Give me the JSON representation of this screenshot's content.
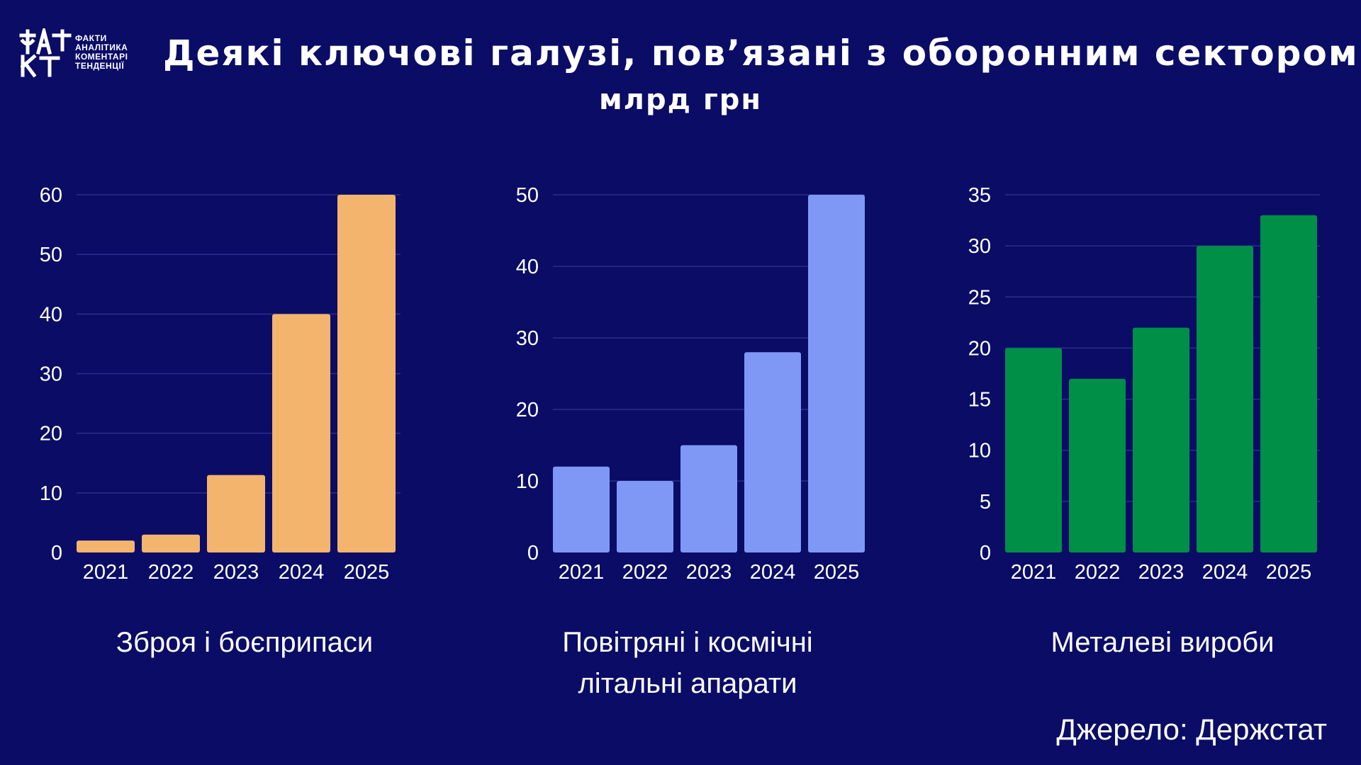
{
  "logo": {
    "lines": [
      "ФАКТИ",
      "АНАЛІТИКА",
      "КОМЕНТАРІ",
      "ТЕНДЕНЦІЇ"
    ],
    "accent": "#ffffff"
  },
  "header": {
    "title": "Деякі ключові галузі, пов’язані з оборонним сектором",
    "subtitle": "млрд грн"
  },
  "source": "Джерело: Держстат",
  "chart_data": [
    {
      "type": "bar",
      "categories": [
        "2021",
        "2022",
        "2023",
        "2024",
        "2025"
      ],
      "values": [
        2,
        3,
        13,
        40,
        60
      ],
      "ylim": [
        0,
        60
      ],
      "yticks": [
        0,
        10,
        20,
        30,
        40,
        50,
        60
      ],
      "caption": [
        "Зброя і боєприпаси"
      ],
      "color": "#f3b46e",
      "grid": true
    },
    {
      "type": "bar",
      "categories": [
        "2021",
        "2022",
        "2023",
        "2024",
        "2025"
      ],
      "values": [
        12,
        10,
        15,
        28,
        50
      ],
      "ylim": [
        0,
        50
      ],
      "yticks": [
        0,
        10,
        20,
        30,
        40,
        50
      ],
      "caption": [
        "Повітряні і космічні",
        "літальні апарати"
      ],
      "color": "#7f98f5",
      "grid": true
    },
    {
      "type": "bar",
      "categories": [
        "2021",
        "2022",
        "2023",
        "2024",
        "2025"
      ],
      "values": [
        20,
        17,
        22,
        30,
        33
      ],
      "ylim": [
        0,
        35
      ],
      "yticks": [
        0,
        5,
        10,
        15,
        20,
        25,
        30,
        35
      ],
      "caption": [
        "Металеві вироби"
      ],
      "color": "#008f47",
      "grid": true
    }
  ]
}
